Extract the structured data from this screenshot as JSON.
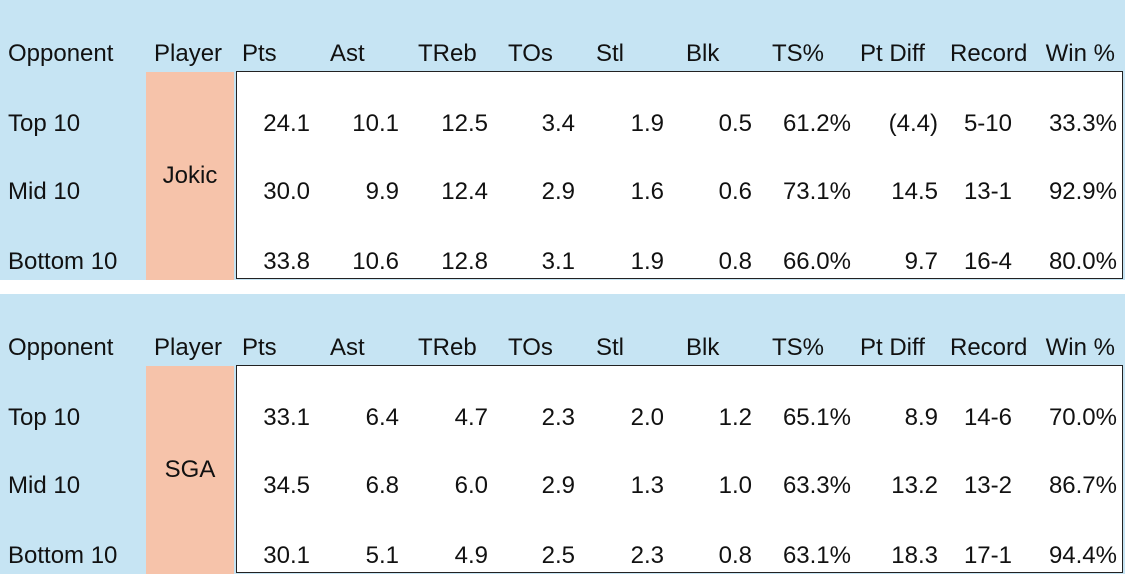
{
  "columns": [
    "Opponent",
    "Player",
    "Pts",
    "Ast",
    "TReb",
    "TOs",
    "Stl",
    "Blk",
    "TS%",
    "Pt Diff",
    "Record",
    "Win %"
  ],
  "tables": [
    {
      "player": "Jokic",
      "rows": [
        {
          "opponent": "Top 10",
          "values": [
            "24.1",
            "10.1",
            "12.5",
            "3.4",
            "1.9",
            "0.5",
            "61.2%",
            "(4.4)",
            "5-10",
            "33.3%"
          ]
        },
        {
          "opponent": "Mid 10",
          "values": [
            "30.0",
            "9.9",
            "12.4",
            "2.9",
            "1.6",
            "0.6",
            "73.1%",
            "14.5",
            "13-1",
            "92.9%"
          ]
        },
        {
          "opponent": "Bottom 10",
          "values": [
            "33.8",
            "10.6",
            "12.8",
            "3.1",
            "1.9",
            "0.8",
            "66.0%",
            "9.7",
            "16-4",
            "80.0%"
          ]
        }
      ]
    },
    {
      "player": "SGA",
      "rows": [
        {
          "opponent": "Top 10",
          "values": [
            "33.1",
            "6.4",
            "4.7",
            "2.3",
            "2.0",
            "1.2",
            "65.1%",
            "8.9",
            "14-6",
            "70.0%"
          ]
        },
        {
          "opponent": "Mid 10",
          "values": [
            "34.5",
            "6.8",
            "6.0",
            "2.9",
            "1.3",
            "1.0",
            "63.3%",
            "13.2",
            "13-2",
            "86.7%"
          ]
        },
        {
          "opponent": "Bottom 10",
          "values": [
            "30.1",
            "5.1",
            "4.9",
            "2.5",
            "2.3",
            "0.8",
            "63.1%",
            "18.3",
            "17-1",
            "94.4%"
          ]
        }
      ]
    }
  ],
  "chart_data": {
    "type": "table",
    "columns": [
      "Opponent",
      "Player",
      "Pts",
      "Ast",
      "TReb",
      "TOs",
      "Stl",
      "Blk",
      "TS%",
      "Pt Diff",
      "Record",
      "Win %"
    ],
    "rows": [
      [
        "Top 10",
        "Jokic",
        "24.1",
        "10.1",
        "12.5",
        "3.4",
        "1.9",
        "0.5",
        "61.2%",
        "(4.4)",
        "5-10",
        "33.3%"
      ],
      [
        "Mid 10",
        "Jokic",
        "30.0",
        "9.9",
        "12.4",
        "2.9",
        "1.6",
        "0.6",
        "73.1%",
        "14.5",
        "13-1",
        "92.9%"
      ],
      [
        "Bottom 10",
        "Jokic",
        "33.8",
        "10.6",
        "12.8",
        "3.1",
        "1.9",
        "0.8",
        "66.0%",
        "9.7",
        "16-4",
        "80.0%"
      ],
      [
        "Top 10",
        "SGA",
        "33.1",
        "6.4",
        "4.7",
        "2.3",
        "2.0",
        "1.2",
        "65.1%",
        "8.9",
        "14-6",
        "70.0%"
      ],
      [
        "Mid 10",
        "SGA",
        "34.5",
        "6.8",
        "6.0",
        "2.9",
        "1.3",
        "1.0",
        "63.3%",
        "13.2",
        "13-2",
        "86.7%"
      ],
      [
        "Bottom 10",
        "SGA",
        "30.1",
        "5.1",
        "4.9",
        "2.5",
        "2.3",
        "0.8",
        "63.1%",
        "18.3",
        "17-1",
        "94.4%"
      ]
    ]
  },
  "colors": {
    "header_background": "#c6e4f3",
    "player_background": "#f6c3aa",
    "data_background": "#ffffff",
    "border": "#222222"
  }
}
